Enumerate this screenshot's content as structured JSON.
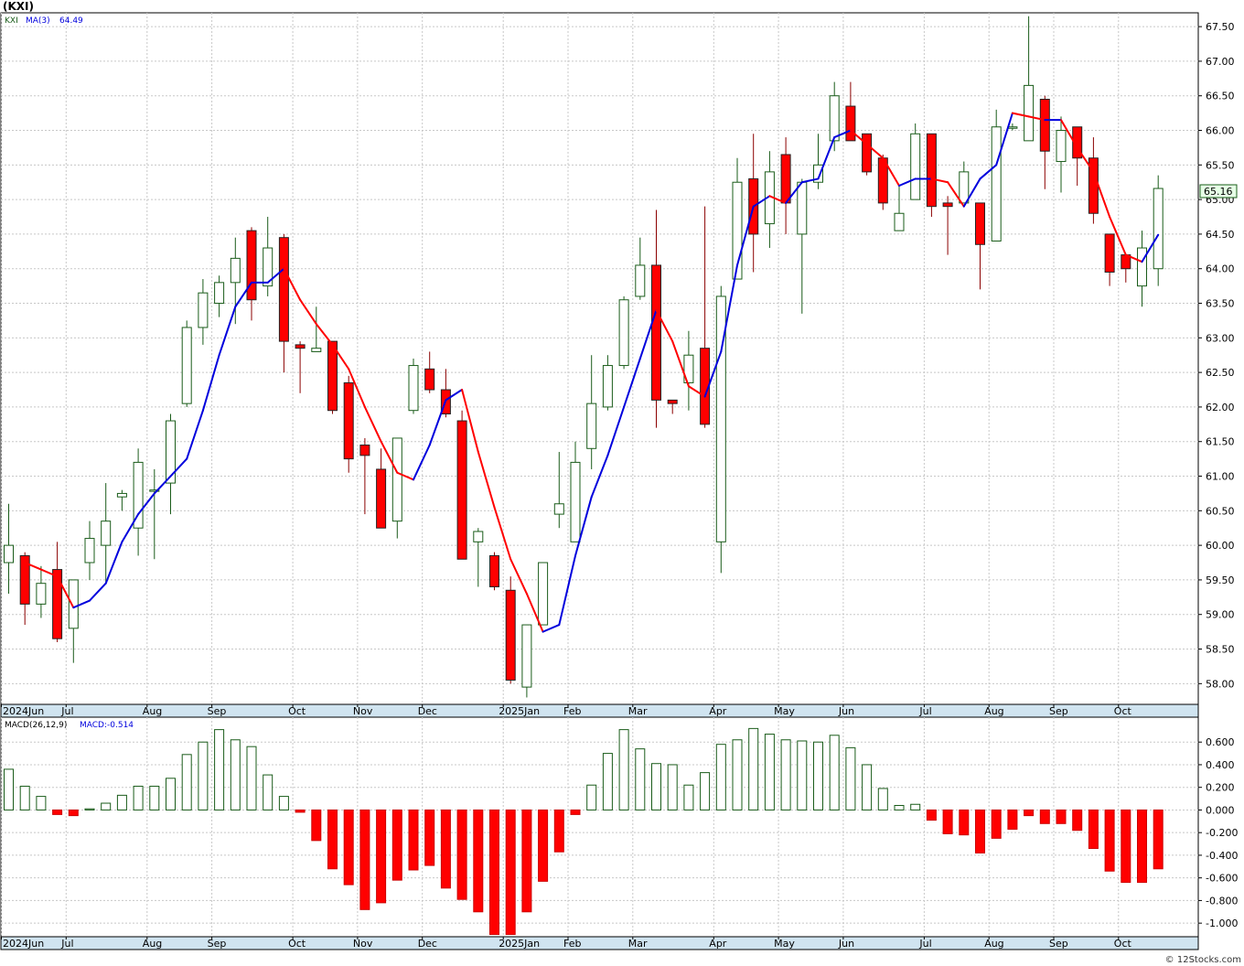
{
  "symbol": "(KXI)",
  "watermark": "© 12Stocks.com",
  "legend": {
    "ticker": "KXI",
    "ma_label": "MA(3)",
    "ma_value": "64.49",
    "macd_label": "MACD(26,12,9)",
    "macd_value": "MACD:-0.514"
  },
  "colors": {
    "up": "#1a5c1a",
    "down": "#ff0000",
    "ma_up": "#0000dd",
    "ma_down": "#ff0000",
    "grid": "#c8c8c8",
    "axis_strip": "#d0e4f0",
    "last_price_box": "#e6ffe6"
  },
  "chart_data": [
    {
      "type": "candlestick",
      "title": "(KXI)",
      "ylim": [
        57.7,
        67.7
      ],
      "y_ticks": [
        "58.00",
        "58.50",
        "59.00",
        "59.50",
        "60.00",
        "60.50",
        "61.00",
        "61.50",
        "62.00",
        "62.50",
        "63.00",
        "63.50",
        "64.00",
        "64.50",
        "65.00",
        "65.50",
        "66.00",
        "66.50",
        "67.00",
        "67.50"
      ],
      "x_labels": [
        "2024Jun",
        "Jul",
        "Aug",
        "Sep",
        "Oct",
        "Nov",
        "Dec",
        "2025Jan",
        "Feb",
        "Mar",
        "Apr",
        "May",
        "Jun",
        "Jul",
        "Aug",
        "Sep",
        "Oct"
      ],
      "x_label_week": [
        0,
        4,
        9,
        13,
        18,
        22,
        26,
        31,
        35,
        39,
        44,
        48,
        52,
        57,
        61,
        65,
        69
      ],
      "last_price": "65.16",
      "candles": [
        {
          "o": 59.75,
          "h": 60.6,
          "l": 59.3,
          "c": 60.0
        },
        {
          "o": 59.85,
          "h": 59.9,
          "l": 58.85,
          "c": 59.15
        },
        {
          "o": 59.15,
          "h": 59.7,
          "l": 58.95,
          "c": 59.45
        },
        {
          "o": 59.65,
          "h": 60.05,
          "l": 58.6,
          "c": 58.65
        },
        {
          "o": 58.8,
          "h": 59.5,
          "l": 58.3,
          "c": 59.5
        },
        {
          "o": 59.75,
          "h": 60.35,
          "l": 59.5,
          "c": 60.1
        },
        {
          "o": 60.0,
          "h": 60.9,
          "l": 59.45,
          "c": 60.35
        },
        {
          "o": 60.7,
          "h": 60.8,
          "l": 60.5,
          "c": 60.75
        },
        {
          "o": 60.25,
          "h": 61.4,
          "l": 59.85,
          "c": 61.2
        },
        {
          "o": 60.8,
          "h": 61.1,
          "l": 59.8,
          "c": 60.8
        },
        {
          "o": 60.9,
          "h": 61.9,
          "l": 60.45,
          "c": 61.8
        },
        {
          "o": 62.05,
          "h": 63.25,
          "l": 62.0,
          "c": 63.15
        },
        {
          "o": 63.15,
          "h": 63.85,
          "l": 62.9,
          "c": 63.65
        },
        {
          "o": 63.5,
          "h": 63.9,
          "l": 63.3,
          "c": 63.8
        },
        {
          "o": 63.8,
          "h": 64.45,
          "l": 63.2,
          "c": 64.15
        },
        {
          "o": 64.55,
          "h": 64.6,
          "l": 63.25,
          "c": 63.55
        },
        {
          "o": 63.75,
          "h": 64.75,
          "l": 63.6,
          "c": 64.3
        },
        {
          "o": 64.45,
          "h": 64.5,
          "l": 62.5,
          "c": 62.95
        },
        {
          "o": 62.9,
          "h": 62.95,
          "l": 62.2,
          "c": 62.85
        },
        {
          "o": 62.8,
          "h": 63.45,
          "l": 62.8,
          "c": 62.85
        },
        {
          "o": 62.95,
          "h": 62.95,
          "l": 61.9,
          "c": 61.95
        },
        {
          "o": 62.35,
          "h": 62.45,
          "l": 61.05,
          "c": 61.25
        },
        {
          "o": 61.45,
          "h": 61.55,
          "l": 60.45,
          "c": 61.3
        },
        {
          "o": 61.1,
          "h": 61.4,
          "l": 60.25,
          "c": 60.25
        },
        {
          "o": 60.35,
          "h": 61.55,
          "l": 60.1,
          "c": 61.55
        },
        {
          "o": 61.95,
          "h": 62.7,
          "l": 61.9,
          "c": 62.6
        },
        {
          "o": 62.55,
          "h": 62.8,
          "l": 62.2,
          "c": 62.25
        },
        {
          "o": 62.25,
          "h": 62.55,
          "l": 61.85,
          "c": 61.9
        },
        {
          "o": 61.8,
          "h": 61.95,
          "l": 59.8,
          "c": 59.8
        },
        {
          "o": 60.05,
          "h": 60.25,
          "l": 59.4,
          "c": 60.2
        },
        {
          "o": 59.85,
          "h": 59.9,
          "l": 59.35,
          "c": 59.4
        },
        {
          "o": 59.35,
          "h": 59.55,
          "l": 58.0,
          "c": 58.05
        },
        {
          "o": 57.95,
          "h": 58.85,
          "l": 57.8,
          "c": 58.85
        },
        {
          "o": 58.85,
          "h": 59.75,
          "l": 58.85,
          "c": 59.75
        },
        {
          "o": 60.45,
          "h": 61.35,
          "l": 60.25,
          "c": 60.6
        },
        {
          "o": 60.05,
          "h": 61.5,
          "l": 60.05,
          "c": 61.2
        },
        {
          "o": 61.4,
          "h": 62.75,
          "l": 61.1,
          "c": 62.05
        },
        {
          "o": 62.0,
          "h": 62.75,
          "l": 61.95,
          "c": 62.6
        },
        {
          "o": 62.6,
          "h": 63.6,
          "l": 62.55,
          "c": 63.55
        },
        {
          "o": 63.6,
          "h": 64.45,
          "l": 63.55,
          "c": 64.05
        },
        {
          "o": 64.05,
          "h": 64.85,
          "l": 61.7,
          "c": 62.1
        },
        {
          "o": 62.1,
          "h": 62.1,
          "l": 61.9,
          "c": 62.05
        },
        {
          "o": 62.35,
          "h": 63.1,
          "l": 61.95,
          "c": 62.75
        },
        {
          "o": 62.85,
          "h": 64.9,
          "l": 61.7,
          "c": 61.75
        },
        {
          "o": 60.05,
          "h": 63.75,
          "l": 59.6,
          "c": 63.6
        },
        {
          "o": 63.85,
          "h": 65.6,
          "l": 63.85,
          "c": 65.25
        },
        {
          "o": 65.3,
          "h": 65.95,
          "l": 63.95,
          "c": 64.5
        },
        {
          "o": 64.65,
          "h": 65.7,
          "l": 64.3,
          "c": 65.4
        },
        {
          "o": 65.65,
          "h": 65.9,
          "l": 64.5,
          "c": 64.95
        },
        {
          "o": 64.5,
          "h": 65.3,
          "l": 63.35,
          "c": 65.25
        },
        {
          "o": 65.25,
          "h": 65.95,
          "l": 65.15,
          "c": 65.5
        },
        {
          "o": 65.85,
          "h": 66.7,
          "l": 65.7,
          "c": 66.5
        },
        {
          "o": 66.35,
          "h": 66.7,
          "l": 65.85,
          "c": 65.85
        },
        {
          "o": 65.95,
          "h": 65.95,
          "l": 65.35,
          "c": 65.4
        },
        {
          "o": 65.6,
          "h": 65.65,
          "l": 64.85,
          "c": 64.95
        },
        {
          "o": 64.55,
          "h": 65.2,
          "l": 64.55,
          "c": 64.8
        },
        {
          "o": 65.0,
          "h": 66.1,
          "l": 65.0,
          "c": 65.95
        },
        {
          "o": 65.95,
          "h": 65.95,
          "l": 64.75,
          "c": 64.9
        },
        {
          "o": 64.95,
          "h": 65.05,
          "l": 64.2,
          "c": 64.9
        },
        {
          "o": 64.95,
          "h": 65.55,
          "l": 64.95,
          "c": 65.4
        },
        {
          "o": 64.95,
          "h": 64.95,
          "l": 63.7,
          "c": 64.35
        },
        {
          "o": 64.4,
          "h": 66.3,
          "l": 64.4,
          "c": 66.05
        },
        {
          "o": 66.05,
          "h": 66.1,
          "l": 66.0,
          "c": 66.05
        },
        {
          "o": 65.85,
          "h": 67.65,
          "l": 65.85,
          "c": 66.65
        },
        {
          "o": 66.45,
          "h": 66.5,
          "l": 65.15,
          "c": 65.7
        },
        {
          "o": 65.55,
          "h": 66.2,
          "l": 65.1,
          "c": 66.0
        },
        {
          "o": 66.05,
          "h": 66.05,
          "l": 65.2,
          "c": 65.6
        },
        {
          "o": 65.6,
          "h": 65.9,
          "l": 64.65,
          "c": 64.8
        },
        {
          "o": 64.5,
          "h": 64.5,
          "l": 63.75,
          "c": 63.95
        },
        {
          "o": 64.2,
          "h": 64.2,
          "l": 63.8,
          "c": 64.0
        },
        {
          "o": 63.75,
          "h": 64.55,
          "l": 63.45,
          "c": 64.3
        },
        {
          "o": 64.0,
          "h": 65.35,
          "l": 63.75,
          "c": 65.16
        }
      ],
      "ma3": [
        59.75,
        59.65,
        59.55,
        59.1,
        59.2,
        59.45,
        60.05,
        60.45,
        60.75,
        61.0,
        61.25,
        61.95,
        62.75,
        63.45,
        63.8,
        63.8,
        64.0,
        63.55,
        63.2,
        62.9,
        62.55,
        62.0,
        61.5,
        61.05,
        60.95,
        61.45,
        62.1,
        62.25,
        61.35,
        60.55,
        59.8,
        59.3,
        58.75,
        58.85,
        59.85,
        60.7,
        61.3,
        62.0,
        62.7,
        63.4,
        62.95,
        62.3,
        62.15,
        62.8,
        64.05,
        64.9,
        65.05,
        64.95,
        65.25,
        65.3,
        65.9,
        66.0,
        65.8,
        65.6,
        65.2,
        65.3,
        65.3,
        65.25,
        64.9,
        65.3,
        65.5,
        66.25,
        66.2,
        66.15,
        66.15,
        65.75,
        65.4,
        64.75,
        64.2,
        64.1,
        64.49
      ],
      "ma3_start_week": 1,
      "macd_panel": {
        "type": "bar",
        "title": "MACD(26,12,9)",
        "ylim": [
          -1.12,
          0.82
        ],
        "y_ticks": [
          "0.600",
          "0.400",
          "0.200",
          "0.000",
          "-0.200",
          "-0.400",
          "-0.600",
          "-0.800",
          "-1.000"
        ],
        "values": [
          0.36,
          0.21,
          0.12,
          -0.04,
          -0.05,
          0.01,
          0.06,
          0.13,
          0.21,
          0.21,
          0.28,
          0.49,
          0.6,
          0.71,
          0.62,
          0.56,
          0.31,
          0.12,
          -0.02,
          -0.27,
          -0.52,
          -0.66,
          -0.88,
          -0.82,
          -0.62,
          -0.53,
          -0.49,
          -0.69,
          -0.79,
          -0.9,
          -1.1,
          -1.1,
          -0.9,
          -0.63,
          -0.37,
          -0.04,
          0.22,
          0.5,
          0.71,
          0.54,
          0.41,
          0.4,
          0.22,
          0.33,
          0.58,
          0.62,
          0.72,
          0.67,
          0.62,
          0.61,
          0.6,
          0.66,
          0.55,
          0.4,
          0.19,
          0.04,
          0.05,
          -0.09,
          -0.21,
          -0.22,
          -0.38,
          -0.25,
          -0.17,
          -0.05,
          -0.12,
          -0.12,
          -0.18,
          -0.34,
          -0.54,
          -0.64,
          -0.64,
          -0.52
        ]
      }
    }
  ]
}
